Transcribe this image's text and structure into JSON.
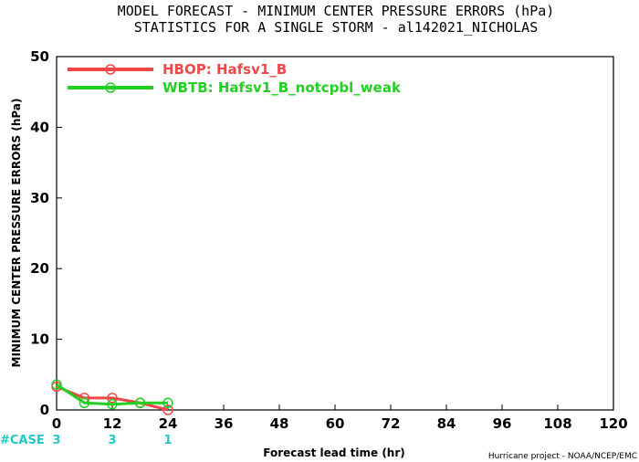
{
  "chart_data": {
    "type": "line",
    "title": "MODEL FORECAST - MINIMUM CENTER PRESSURE ERRORS (hPa)",
    "subtitle": "STATISTICS FOR A SINGLE STORM - al142021_NICHOLAS",
    "xlabel": "Forecast lead time (hr)",
    "ylabel": "MINIMUM CENTER PRESSURE ERRORS (hPa)",
    "xlim": [
      0,
      120
    ],
    "ylim": [
      0,
      50
    ],
    "x_ticks": [
      "0",
      "12",
      "24",
      "36",
      "48",
      "60",
      "72",
      "84",
      "96",
      "108",
      "120"
    ],
    "y_ticks": [
      "0",
      "10",
      "20",
      "30",
      "40",
      "50"
    ],
    "legend_position": "top-left",
    "series": [
      {
        "name": "HBOP: Hafsv1_B",
        "color": "#f04848",
        "x": [
          0,
          6,
          12,
          18,
          24
        ],
        "y": [
          3.3,
          1.7,
          1.7,
          1.0,
          0.0
        ]
      },
      {
        "name": "WBTB: Hafsv1_B_notcpbl_weak",
        "color": "#22d022",
        "x": [
          0,
          6,
          12,
          18,
          24
        ],
        "y": [
          3.6,
          1.0,
          0.8,
          1.0,
          1.0
        ]
      }
    ],
    "case_label": "#CASE",
    "case_color": "#22c8c8",
    "cases": [
      {
        "x": 0,
        "count": "3"
      },
      {
        "x": 12,
        "count": "3"
      },
      {
        "x": 24,
        "count": "1"
      }
    ],
    "credit": "Hurricane project - NOAA/NCEP/EMC"
  }
}
